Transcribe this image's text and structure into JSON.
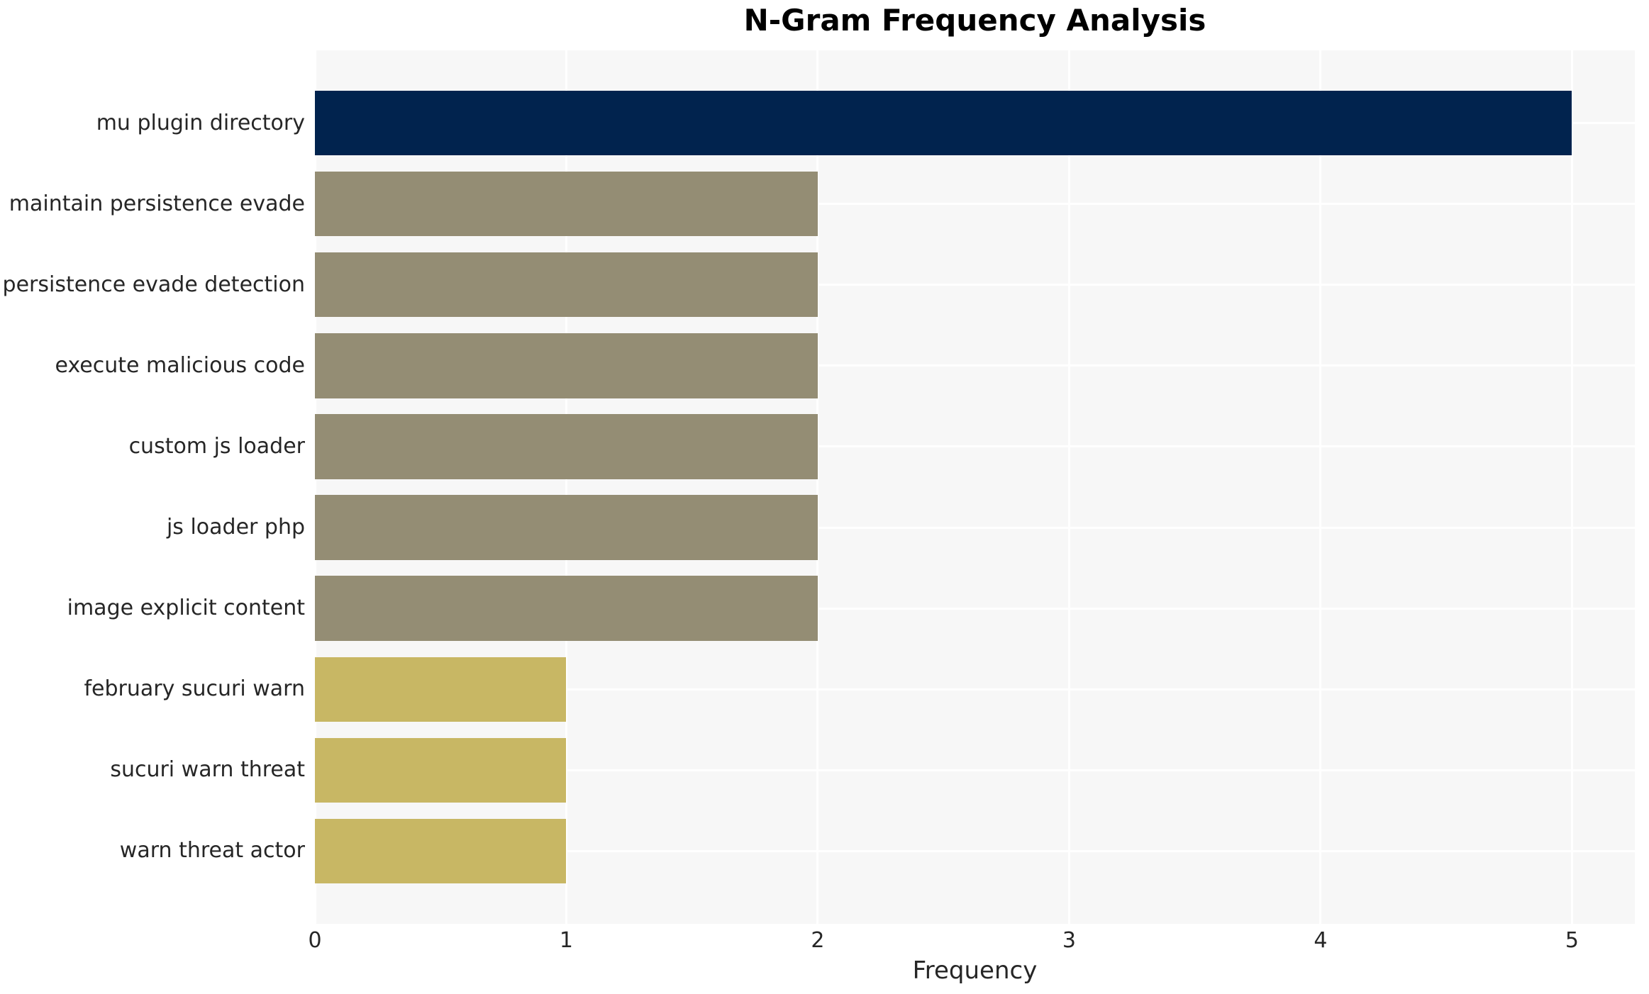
{
  "chart_data": {
    "type": "bar",
    "orientation": "horizontal",
    "title": "N-Gram Frequency Analysis",
    "xlabel": "Frequency",
    "ylabel": "",
    "categories": [
      "mu plugin directory",
      "maintain persistence evade",
      "persistence evade detection",
      "execute malicious code",
      "custom js loader",
      "js loader php",
      "image explicit content",
      "february sucuri warn",
      "sucuri warn threat",
      "warn threat actor"
    ],
    "values": [
      5,
      2,
      2,
      2,
      2,
      2,
      2,
      1,
      1,
      1
    ],
    "xticks": [
      0,
      1,
      2,
      3,
      4,
      5
    ],
    "xlim": [
      0,
      5.25
    ],
    "grid": true,
    "legend": "none",
    "colors": {
      "value_5": "#01234e",
      "value_2": "#948d74",
      "value_1": "#c8b764"
    },
    "plot_background": "#f7f7f7",
    "grid_color": "#ffffff",
    "text_color": "#262626",
    "title_color": "#000000"
  }
}
